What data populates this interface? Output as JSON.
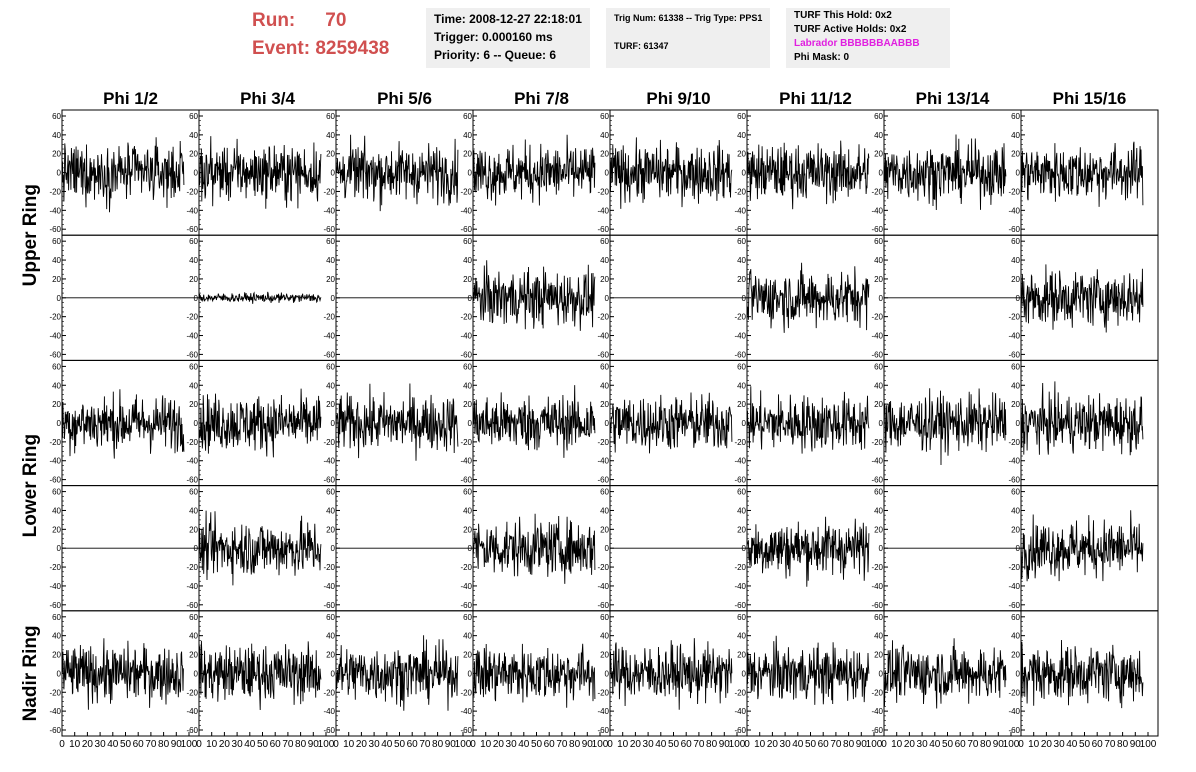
{
  "header": {
    "run_label": "Run:",
    "run_value": "70",
    "event_label": "Event:",
    "event_value": "8259438",
    "time": "Time: 2008-12-27 22:18:01",
    "trigger": "Trigger: 0.000160 ms",
    "priority": "Priority: 6 -- Queue: 6",
    "trig_num": "Trig Num: 61338 -- Trig Type: PPS1",
    "turf": "TURF: 61347",
    "turf_this_hold": "TURF This Hold: 0x2",
    "turf_active_holds": "TURF Active Holds: 0x2",
    "labrador": "Labrador BBBBBBAABBB",
    "phi_mask": "Phi Mask: 0"
  },
  "colors": {
    "run_text": "#d05050",
    "labrador_text": "#e020e0",
    "info_bg": "#efefef",
    "trace": "#000000"
  },
  "chart_data": {
    "type": "line",
    "description_layout": "5x8 grid of waveform panels",
    "columns": [
      "Phi 1/2",
      "Phi 3/4",
      "Phi 5/6",
      "Phi 7/8",
      "Phi 9/10",
      "Phi 11/12",
      "Phi 13/14",
      "Phi 15/16"
    ],
    "ring_labels": [
      {
        "label": "Upper Ring",
        "rows": [
          0,
          1
        ]
      },
      {
        "label": "Lower Ring",
        "rows": [
          2,
          3
        ]
      },
      {
        "label": "Nadir Ring",
        "rows": [
          4
        ]
      }
    ],
    "xlim": [
      0,
      100
    ],
    "ylim": [
      -60,
      60
    ],
    "x_ticks": [
      0,
      10,
      20,
      30,
      40,
      50,
      60,
      70,
      80,
      90,
      100
    ],
    "y_ticks": [
      -60,
      -40,
      -20,
      0,
      20,
      40,
      60
    ],
    "grid": false,
    "panels": [
      [
        "noise",
        "noise",
        "noise",
        "noise",
        "noise",
        "noise",
        "noise",
        "noise"
      ],
      [
        "flat",
        "low",
        "flat",
        "noise",
        "flat",
        "noise",
        "flat",
        "noise"
      ],
      [
        "noise",
        "noise",
        "noise",
        "noise",
        "noise",
        "noise",
        "noise",
        "noise"
      ],
      [
        "flat",
        "noise",
        "flat",
        "noise",
        "flat",
        "noise",
        "flat",
        "noise"
      ],
      [
        "noise",
        "noise",
        "noise",
        "noise",
        "noise",
        "noise",
        "noise",
        "noise"
      ]
    ],
    "noise_amplitude": {
      "noise": 15,
      "low": 2.5,
      "flat": 0
    },
    "samples": 260
  }
}
